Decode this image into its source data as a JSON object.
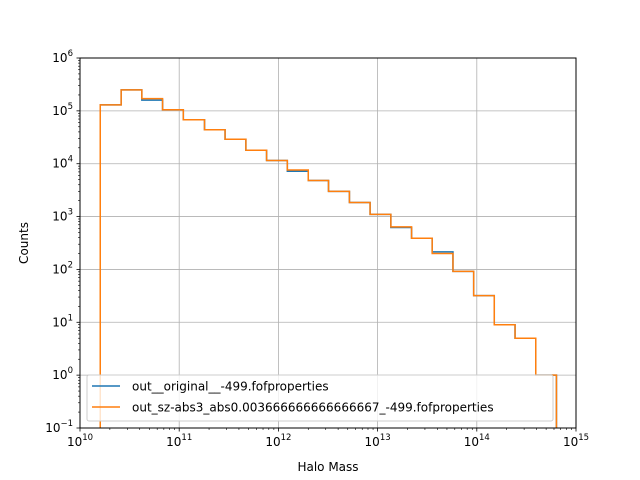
{
  "chart_data": {
    "type": "histogram",
    "xlabel": "Halo Mass",
    "ylabel": "Counts",
    "xscale": "log",
    "yscale": "log",
    "xlim": [
      10000000000.0,
      1000000000000000.0
    ],
    "ylim": [
      0.1,
      1000000.0
    ],
    "grid": true,
    "legend_location": "lower-left",
    "x_ticks": [
      {
        "value": 10000000000.0,
        "base": "10",
        "exp": "10"
      },
      {
        "value": 100000000000.0,
        "base": "10",
        "exp": "11"
      },
      {
        "value": 1000000000000.0,
        "base": "10",
        "exp": "12"
      },
      {
        "value": 10000000000000.0,
        "base": "10",
        "exp": "13"
      },
      {
        "value": 100000000000000.0,
        "base": "10",
        "exp": "14"
      },
      {
        "value": 1000000000000000.0,
        "base": "10",
        "exp": "15"
      }
    ],
    "y_ticks": [
      {
        "value": 0.1,
        "base": "10",
        "exp": "−1"
      },
      {
        "value": 1,
        "base": "10",
        "exp": "0"
      },
      {
        "value": 10,
        "base": "10",
        "exp": "1"
      },
      {
        "value": 100,
        "base": "10",
        "exp": "2"
      },
      {
        "value": 1000,
        "base": "10",
        "exp": "3"
      },
      {
        "value": 10000,
        "base": "10",
        "exp": "4"
      },
      {
        "value": 100000,
        "base": "10",
        "exp": "5"
      },
      {
        "value": 1000000,
        "base": "10",
        "exp": "6"
      }
    ],
    "bin_edges": [
      16000000000.0,
      26000000000.0,
      42000000000.0,
      68000000000.0,
      110000000000.0,
      180000000000.0,
      290000000000.0,
      470000000000.0,
      760000000000.0,
      1230000000000.0,
      2000000000000.0,
      3200000000000.0,
      5200000000000.0,
      8400000000000.0,
      13600000000000.0,
      22000000000000.0,
      35500000000000.0,
      57500000000000.0,
      93000000000000.0,
      150000000000000.0,
      243000000000000.0,
      393000000000000.0,
      635000000000000.0
    ],
    "series": [
      {
        "name": "out__original__-499.fofproperties",
        "color": "#1f77b4",
        "counts": [
          130000,
          250000,
          160000,
          105000,
          68000,
          44000,
          29000,
          18000,
          11500,
          7200,
          4800,
          3000,
          1850,
          1100,
          620,
          390,
          215,
          92,
          32,
          9,
          5,
          1
        ]
      },
      {
        "name": "out_sz-abs3_abs0.003666666666666667_-499.fofproperties",
        "color": "#ff7f0e",
        "counts": [
          130000,
          250000,
          170000,
          105000,
          68000,
          44000,
          29000,
          18000,
          11500,
          7600,
          4800,
          3000,
          1850,
          1100,
          640,
          390,
          200,
          92,
          32,
          9,
          5,
          1
        ]
      }
    ]
  }
}
